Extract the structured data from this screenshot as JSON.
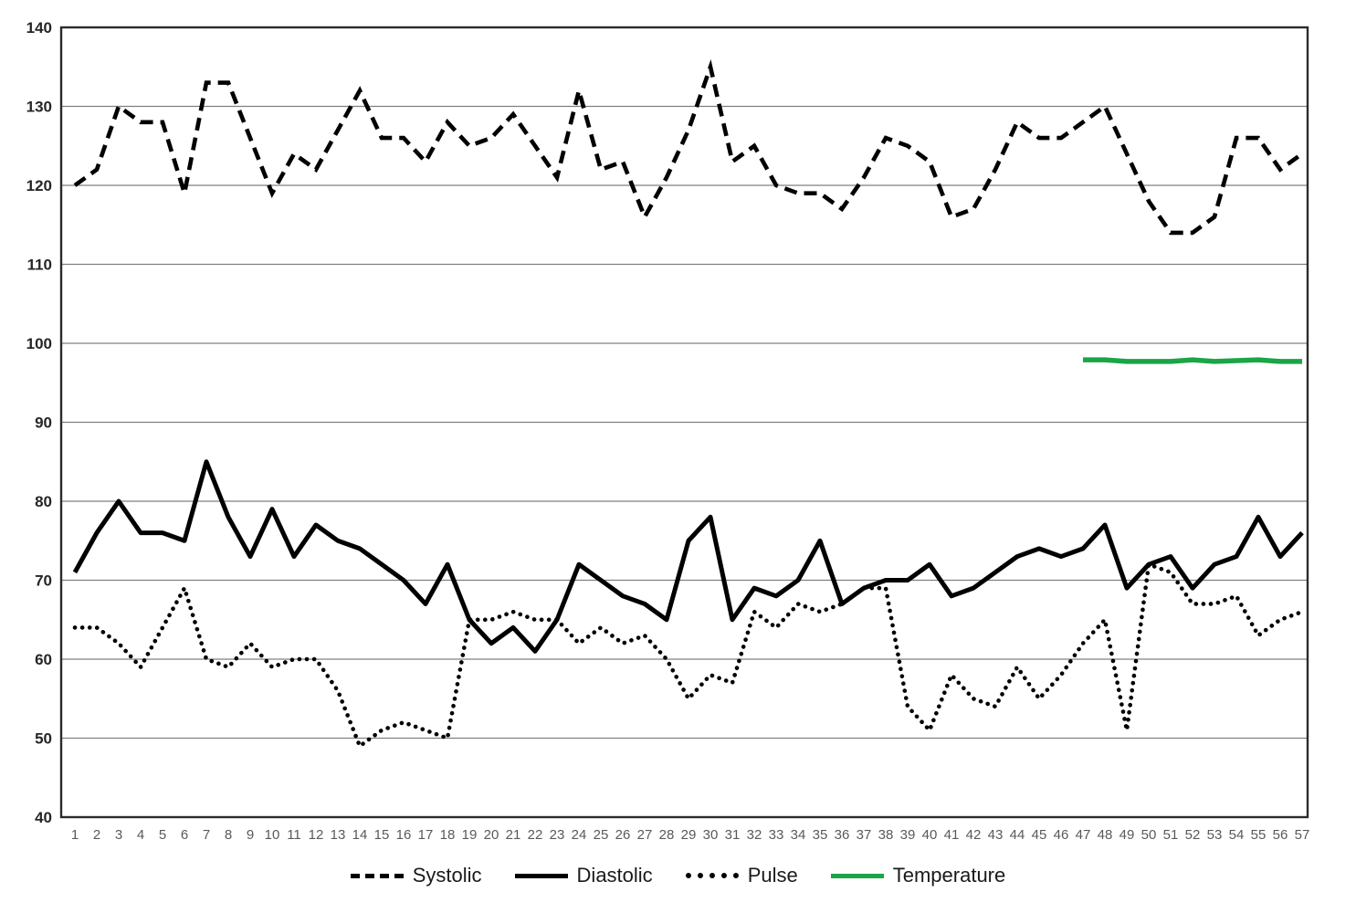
{
  "chart_data": {
    "type": "line",
    "title": "",
    "xlabel": "",
    "ylabel": "",
    "ylim": [
      40,
      140
    ],
    "ytick_interval": 10,
    "grid": true,
    "legend_position": "bottom",
    "background": "#ffffff",
    "grid_color": "#808080",
    "xticks": [
      "1",
      "2",
      "3",
      "4",
      "5",
      "6",
      "7",
      "8",
      "9",
      "10",
      "11",
      "12",
      "13",
      "14",
      "15",
      "16",
      "17",
      "18",
      "19",
      "20",
      "21",
      "22",
      "23",
      "24",
      "25",
      "26",
      "27",
      "28",
      "29",
      "30",
      "31",
      "32",
      "33",
      "34",
      "35",
      "36",
      "37",
      "38",
      "39",
      "40",
      "41",
      "42",
      "43",
      "44",
      "45",
      "46",
      "47",
      "48",
      "49",
      "50",
      "51",
      "52",
      "53",
      "54",
      "55",
      "56",
      "57"
    ],
    "yticks": [
      "140",
      "130",
      "120",
      "110",
      "100",
      "90",
      "80",
      "70",
      "60",
      "50",
      "40"
    ],
    "series": [
      {
        "name": "Systolic",
        "style": "dashed",
        "color": "#000000",
        "values": [
          120,
          122,
          130,
          128,
          128,
          119,
          133,
          133,
          126,
          119,
          124,
          122,
          127,
          132,
          126,
          126,
          123,
          128,
          125,
          126,
          129,
          125,
          121,
          132,
          122,
          123,
          116,
          121,
          127,
          135,
          123,
          125,
          120,
          119,
          119,
          117,
          121,
          126,
          125,
          123,
          116,
          117,
          122,
          128,
          126,
          126,
          128,
          130,
          124,
          118,
          114,
          114,
          116,
          126,
          126,
          122,
          124
        ]
      },
      {
        "name": "Diastolic",
        "style": "solid",
        "color": "#000000",
        "values": [
          71,
          76,
          80,
          76,
          76,
          75,
          85,
          78,
          73,
          79,
          73,
          77,
          75,
          74,
          72,
          70,
          67,
          72,
          65,
          62,
          64,
          61,
          65,
          72,
          70,
          68,
          67,
          65,
          75,
          78,
          65,
          69,
          68,
          70,
          75,
          67,
          69,
          70,
          70,
          72,
          68,
          69,
          71,
          73,
          74,
          73,
          74,
          77,
          69,
          72,
          73,
          69,
          72,
          73,
          78,
          73,
          76
        ]
      },
      {
        "name": "Pulse",
        "style": "dotted",
        "color": "#000000",
        "values": [
          64,
          64,
          62,
          59,
          64,
          69,
          60,
          59,
          62,
          59,
          60,
          60,
          56,
          49,
          51,
          52,
          51,
          50,
          65,
          65,
          66,
          65,
          65,
          62,
          64,
          62,
          63,
          60,
          55,
          58,
          57,
          66,
          64,
          67,
          66,
          67,
          69,
          69,
          54,
          51,
          58,
          55,
          54,
          59,
          55,
          58,
          62,
          65,
          51,
          72,
          71,
          67,
          67,
          68,
          63,
          65,
          66
        ]
      },
      {
        "name": "Temperature",
        "style": "solid",
        "color": "#1aa547",
        "values": [
          null,
          null,
          null,
          null,
          null,
          null,
          null,
          null,
          null,
          null,
          null,
          null,
          null,
          null,
          null,
          null,
          null,
          null,
          null,
          null,
          null,
          null,
          null,
          null,
          null,
          null,
          null,
          null,
          null,
          null,
          null,
          null,
          null,
          null,
          null,
          null,
          null,
          null,
          null,
          null,
          null,
          null,
          null,
          null,
          null,
          null,
          97.9,
          97.9,
          97.7,
          97.7,
          97.7,
          97.9,
          97.7,
          97.8,
          97.9,
          97.7,
          97.7
        ]
      }
    ]
  }
}
